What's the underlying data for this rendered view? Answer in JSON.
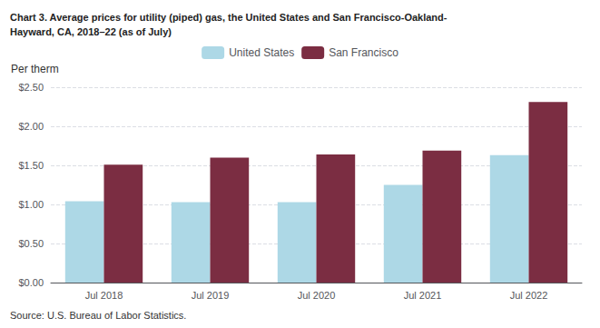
{
  "chart_data": {
    "type": "bar",
    "title": "Chart 3. Average prices for utility (piped) gas, the United States and San Francisco-Oakland-\nHayward, CA, 2018–22 (as of July)",
    "ylabel": "Per therm",
    "annotations": [
      "Source: U.S. Bureau of Labor Statistics."
    ],
    "categories": [
      "Jul 2018",
      "Jul 2019",
      "Jul 2020",
      "Jul 2021",
      "Jul 2022"
    ],
    "series": [
      {
        "name": "United States",
        "color": "#add8e6",
        "values": [
          1.04,
          1.03,
          1.03,
          1.25,
          1.63
        ]
      },
      {
        "name": "San Francisco",
        "color": "#7b2d42",
        "values": [
          1.51,
          1.6,
          1.64,
          1.69,
          2.31
        ]
      }
    ],
    "ylim": [
      0.0,
      2.5
    ],
    "yticks": [
      {
        "value": 0.0,
        "label": "$0.00"
      },
      {
        "value": 0.5,
        "label": "$0.50"
      },
      {
        "value": 1.0,
        "label": "$1.00"
      },
      {
        "value": 1.5,
        "label": "$1.50"
      },
      {
        "value": 2.0,
        "label": "$2.00"
      },
      {
        "value": 2.5,
        "label": "$2.50"
      }
    ],
    "grid": true,
    "legend": "top"
  }
}
